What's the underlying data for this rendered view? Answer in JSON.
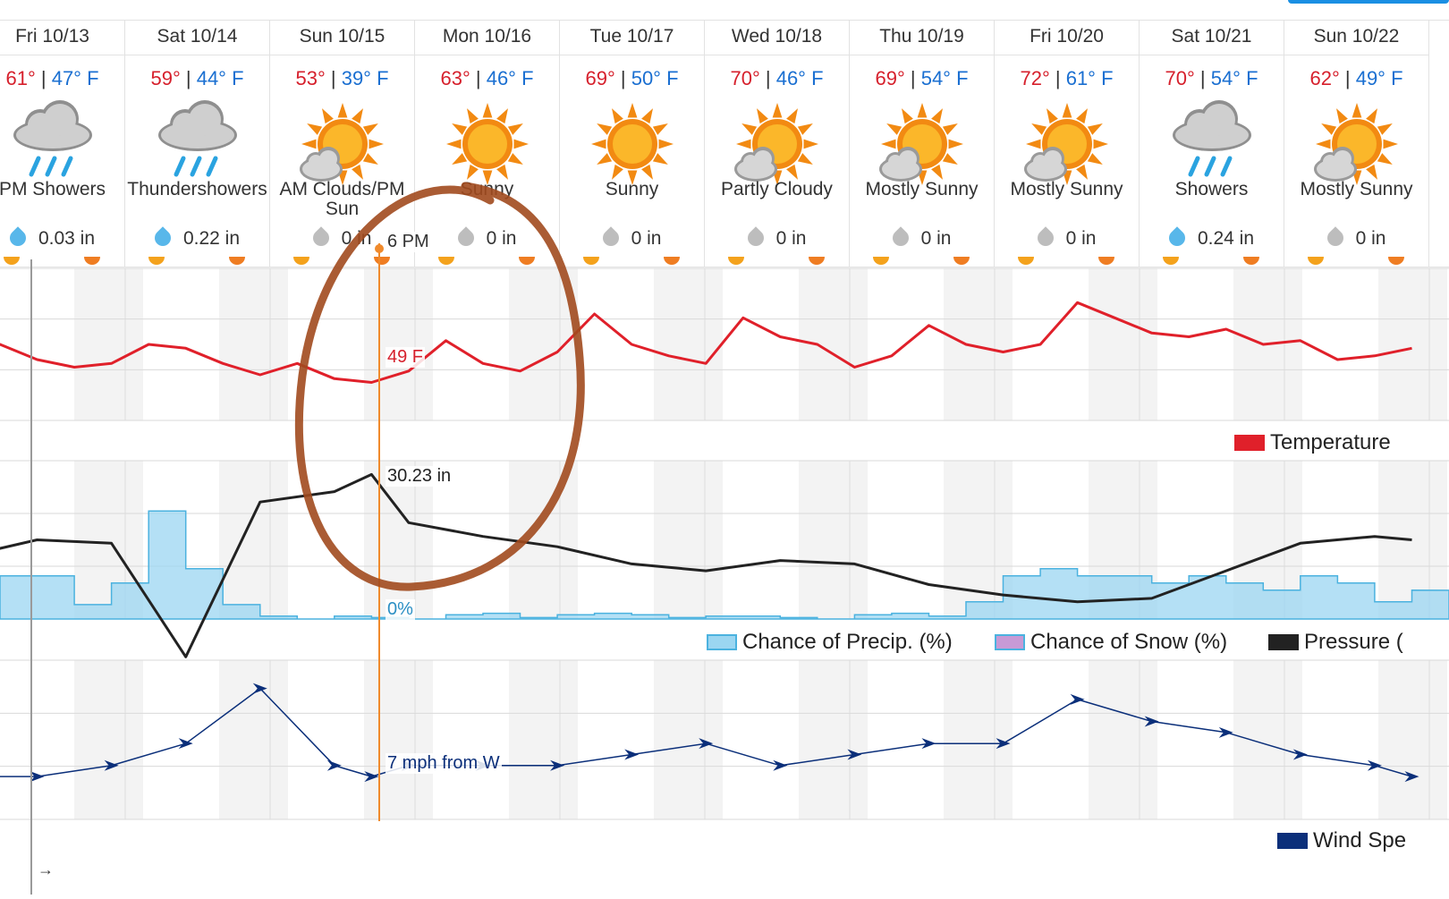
{
  "colors": {
    "hi": "#d6202c",
    "lo": "#1a6fd1",
    "temperature": "#e0202a",
    "pressure": "#222222",
    "precip": "#9bd6f1",
    "precip_line": "#4bb2df",
    "snow": "#c79ad6",
    "wind": "#0b2f7a",
    "cursor": "#f08a2c",
    "annotation": "#a14a1e"
  },
  "days": [
    {
      "name": "Fri 10/13",
      "hi": "61°",
      "sep": " | ",
      "lo": "47° F",
      "icon": "rain-cloud-icon",
      "cond": "PM Showers",
      "precip": "0.03 in",
      "wet": true
    },
    {
      "name": "Sat 10/14",
      "hi": "59°",
      "sep": " | ",
      "lo": "44° F",
      "icon": "rain-cloud-icon",
      "cond": "Thundershowers",
      "precip": "0.22 in",
      "wet": true
    },
    {
      "name": "Sun 10/15",
      "hi": "53°",
      "sep": " | ",
      "lo": "39° F",
      "icon": "sun-cloud-icon",
      "cond": "AM Clouds/PM Sun",
      "precip": "0 in",
      "wet": false
    },
    {
      "name": "Mon 10/16",
      "hi": "63°",
      "sep": " | ",
      "lo": "46° F",
      "icon": "sun-icon",
      "cond": "Sunny",
      "precip": "0 in",
      "wet": false
    },
    {
      "name": "Tue 10/17",
      "hi": "69°",
      "sep": " | ",
      "lo": "50° F",
      "icon": "sun-icon",
      "cond": "Sunny",
      "precip": "0 in",
      "wet": false
    },
    {
      "name": "Wed 10/18",
      "hi": "70°",
      "sep": " | ",
      "lo": "46° F",
      "icon": "sun-cloud-icon",
      "cond": "Partly Cloudy",
      "precip": "0 in",
      "wet": false
    },
    {
      "name": "Thu 10/19",
      "hi": "69°",
      "sep": " | ",
      "lo": "54° F",
      "icon": "sun-cloud-icon",
      "cond": "Mostly Sunny",
      "precip": "0 in",
      "wet": false
    },
    {
      "name": "Fri 10/20",
      "hi": "72°",
      "sep": " | ",
      "lo": "61° F",
      "icon": "sun-cloud-icon",
      "cond": "Mostly Sunny",
      "precip": "0 in",
      "wet": false
    },
    {
      "name": "Sat 10/21",
      "hi": "70°",
      "sep": " | ",
      "lo": "54° F",
      "icon": "rain-cloud-icon",
      "cond": "Showers",
      "precip": "0.24 in",
      "wet": true
    },
    {
      "name": "Sun 10/22",
      "hi": "62°",
      "sep": " | ",
      "lo": "49° F",
      "icon": "sun-cloud-icon",
      "cond": "Mostly Sunny",
      "precip": "0 in",
      "wet": false
    }
  ],
  "cursor": {
    "time": "6 PM",
    "temperature": "49 F",
    "pressure": "30.23 in",
    "precip": "0%",
    "wind": "7 mph from W"
  },
  "legend": {
    "temperature": "Temperature",
    "precip": "Chance of Precip. (%)",
    "snow": "Chance of Snow (%)",
    "pressure": "Pressure (",
    "wind": "Wind Spe"
  },
  "nav_arrow": "→",
  "chart_data": [
    {
      "type": "line",
      "name": "Temperature",
      "unit": "°F",
      "x": [
        0,
        6,
        12,
        18,
        24,
        30,
        36,
        42,
        48,
        54,
        60,
        66,
        72,
        78,
        84,
        90,
        96,
        102,
        108,
        114,
        120,
        126,
        132,
        138,
        144,
        150,
        156,
        162,
        168,
        174,
        180,
        186,
        192,
        198,
        204,
        210,
        216,
        222,
        228,
        234
      ],
      "values": [
        52,
        55,
        51,
        49,
        50,
        55,
        54,
        50,
        47,
        50,
        46,
        45,
        48,
        56,
        50,
        48,
        53,
        63,
        55,
        52,
        50,
        62,
        57,
        55,
        49,
        52,
        60,
        55,
        53,
        55,
        66,
        62,
        58,
        57,
        59,
        55,
        56,
        51,
        52,
        54
      ]
    },
    {
      "type": "line",
      "name": "Pressure",
      "unit": "in",
      "values_note_source": "curve only; only the cursor value 30.23 in is printed",
      "x": [
        0,
        12,
        24,
        36,
        48,
        60,
        66,
        72,
        84,
        96,
        108,
        120,
        132,
        144,
        156,
        168,
        180,
        192,
        204,
        216,
        228,
        234
      ],
      "values": [
        30.04,
        30.09,
        30.08,
        29.75,
        30.2,
        30.23,
        30.28,
        30.14,
        30.1,
        30.07,
        30.02,
        30.0,
        30.03,
        30.02,
        29.96,
        29.93,
        29.91,
        29.92,
        30.0,
        30.08,
        30.1,
        30.09
      ]
    },
    {
      "type": "area",
      "name": "Chance of Precip. (%)",
      "unit": "%",
      "x": [
        0,
        6,
        12,
        18,
        24,
        30,
        36,
        42,
        48,
        54,
        60,
        66,
        72,
        78,
        84,
        90,
        96,
        102,
        108,
        114,
        120,
        126,
        132,
        138,
        144,
        150,
        156,
        162,
        168,
        174,
        180,
        186,
        192,
        198,
        204,
        210,
        216,
        222,
        228,
        234
      ],
      "values": [
        0,
        30,
        30,
        10,
        25,
        75,
        35,
        10,
        2,
        0,
        2,
        1,
        0,
        3,
        4,
        1,
        3,
        4,
        3,
        1,
        2,
        2,
        1,
        0,
        3,
        4,
        2,
        12,
        30,
        35,
        30,
        30,
        25,
        30,
        25,
        20,
        30,
        25,
        12,
        20
      ]
    },
    {
      "type": "line",
      "name": "Wind Speed",
      "unit": "mph",
      "x": [
        0,
        12,
        24,
        36,
        48,
        60,
        66,
        72,
        84,
        96,
        108,
        120,
        132,
        144,
        156,
        168,
        180,
        192,
        204,
        216,
        228,
        234
      ],
      "values": [
        6,
        6,
        7,
        9,
        14,
        7,
        6,
        7,
        7,
        7,
        8,
        9,
        7,
        8,
        9,
        9,
        13,
        11,
        10,
        8,
        7,
        6
      ]
    }
  ]
}
